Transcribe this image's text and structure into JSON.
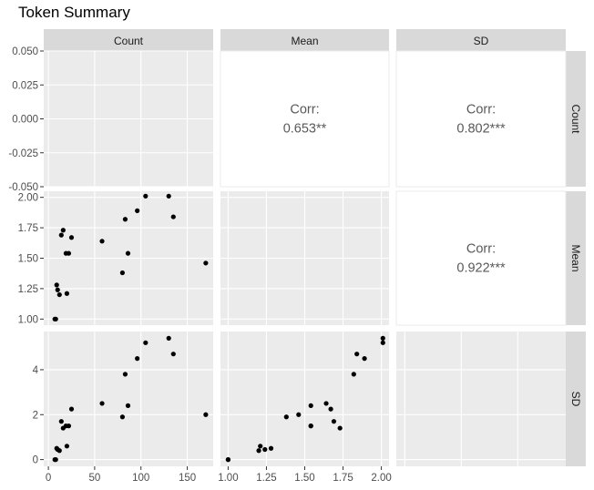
{
  "chart_data": {
    "type": "scatter",
    "title": "Token Summary",
    "variables": [
      "Count",
      "Mean",
      "SD"
    ],
    "strip_labels": {
      "top": [
        "Count",
        "Mean",
        "SD"
      ],
      "right": [
        "Count",
        "Mean",
        "SD"
      ]
    },
    "axes": {
      "Count": {
        "range": [
          -5,
          178
        ],
        "ticks": [
          "0",
          "50",
          "100",
          "150"
        ],
        "tick_values": [
          0,
          50,
          100,
          150
        ]
      },
      "Mean": {
        "range": [
          0.95,
          2.05
        ],
        "ticks": [
          "1.00",
          "1.25",
          "1.50",
          "1.75",
          "2.00"
        ],
        "tick_values": [
          1.0,
          1.25,
          1.5,
          1.75,
          2.0
        ]
      },
      "SD": {
        "range": [
          -0.3,
          5.7
        ],
        "ticks": [
          "0",
          "2",
          "4"
        ],
        "tick_values": [
          0,
          2,
          4
        ]
      },
      "Count_density_y": {
        "range": [
          -0.05,
          0.05
        ],
        "ticks": [
          "0.050",
          "0.025",
          "0.000",
          "-0.025",
          "-0.050"
        ],
        "tick_values": [
          0.05,
          0.025,
          0.0,
          -0.025,
          -0.05
        ]
      }
    },
    "correlations": [
      {
        "row": "Count",
        "col": "Mean",
        "label": "Corr:",
        "value": "0.653**"
      },
      {
        "row": "Count",
        "col": "SD",
        "label": "Corr:",
        "value": "0.802***"
      },
      {
        "row": "Mean",
        "col": "SD",
        "label": "Corr:",
        "value": "0.922***"
      }
    ],
    "points": {
      "Count": [
        7,
        8,
        9,
        10,
        12,
        14,
        16,
        19,
        20,
        22,
        25,
        58,
        80,
        83,
        86,
        96,
        105,
        130,
        135,
        170
      ],
      "Mean": [
        1.0,
        1.0,
        1.28,
        1.24,
        1.2,
        1.69,
        1.73,
        1.54,
        1.21,
        1.54,
        1.67,
        1.64,
        1.38,
        1.82,
        1.54,
        1.89,
        2.01,
        2.01,
        1.84,
        1.46
      ],
      "SD": [
        0.0,
        0.0,
        0.5,
        0.45,
        0.4,
        1.7,
        1.4,
        1.5,
        0.6,
        1.5,
        2.25,
        2.5,
        1.9,
        3.8,
        2.4,
        4.5,
        5.2,
        5.4,
        4.7,
        2.0
      ]
    },
    "grid": true,
    "legend": "none"
  }
}
